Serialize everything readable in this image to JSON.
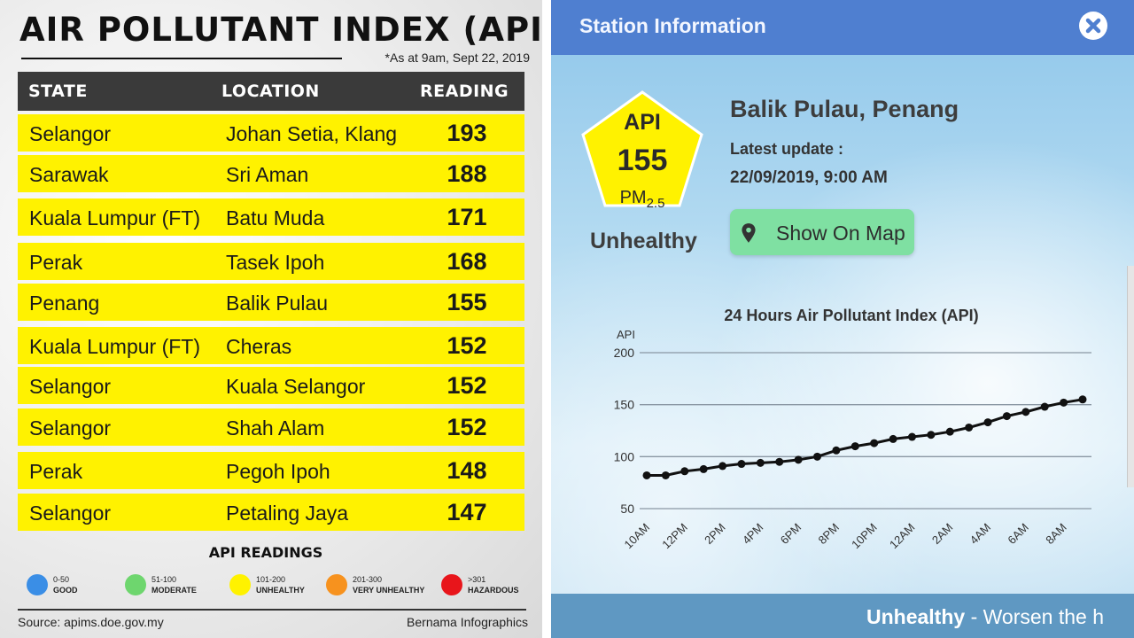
{
  "infographic": {
    "title": "AIR POLLUTANT INDEX (API)",
    "date_note": "*As at 9am, Sept 22, 2019",
    "table": {
      "headers": {
        "state": "STATE",
        "location": "LOCATION",
        "reading": "READING"
      },
      "rows": [
        {
          "state": "Selangor",
          "location": "Johan Setia, Klang",
          "reading": "193"
        },
        {
          "state": "Sarawak",
          "location": "Sri Aman",
          "reading": "188"
        },
        {
          "state": "Kuala Lumpur (FT)",
          "location": "Batu Muda",
          "reading": "171"
        },
        {
          "state": "Perak",
          "location": "Tasek Ipoh",
          "reading": "168"
        },
        {
          "state": "Penang",
          "location": "Balik Pulau",
          "reading": "155"
        },
        {
          "state": "Kuala Lumpur (FT)",
          "location": "Cheras",
          "reading": "152"
        },
        {
          "state": "Selangor",
          "location": "Kuala Selangor",
          "reading": "152"
        },
        {
          "state": "Selangor",
          "location": "Shah Alam",
          "reading": "152"
        },
        {
          "state": "Perak",
          "location": "Pegoh Ipoh",
          "reading": "148"
        },
        {
          "state": "Selangor",
          "location": "Petaling Jaya",
          "reading": "147"
        }
      ]
    },
    "legend": {
      "title": "API READINGS",
      "items": [
        {
          "range": "0-50",
          "label": "GOOD",
          "color": "#3a8ee6"
        },
        {
          "range": "51-100",
          "label": "MODERATE",
          "color": "#6ed66e"
        },
        {
          "range": "101-200",
          "label": "UNHEALTHY",
          "color": "#fff200"
        },
        {
          "range": "201-300",
          "label": "VERY UNHEALTHY",
          "color": "#f7921e"
        },
        {
          "range": ">301",
          "label": "HAZARDOUS",
          "color": "#e8151b"
        }
      ]
    },
    "footer": {
      "source": "Source: apims.doe.gov.my",
      "credit": "Bernama Infographics"
    }
  },
  "app": {
    "header_title": "Station Information",
    "close_icon": "close-icon",
    "badge": {
      "label": "API",
      "value": "155",
      "pollutant": "PM",
      "pollutant_sub": "2.5",
      "color": "#fff200"
    },
    "air_status": "Unhealthy",
    "station": {
      "name": "Balik Pulau, Penang",
      "update_label": "Latest update :",
      "update_time": "22/09/2019, 9:00 AM"
    },
    "map_button": {
      "label": "Show On Map",
      "icon": "map-pin-icon",
      "color": "#7fe0a2"
    },
    "bottom_bar": {
      "status": "Unhealthy",
      "description": " - Worsen the h"
    }
  },
  "chart_data": {
    "type": "line",
    "title": "24 Hours Air Pollutant Index (API)",
    "ylabel": "API",
    "xlabel": "",
    "ylim": [
      50,
      200
    ],
    "yticks": [
      50,
      100,
      150,
      200
    ],
    "grid": true,
    "x_tick_labels": [
      "10AM",
      "12PM",
      "2PM",
      "4PM",
      "6PM",
      "8PM",
      "10PM",
      "12AM",
      "2AM",
      "4AM",
      "6AM",
      "8AM"
    ],
    "x": [
      "10AM",
      "11AM",
      "12PM",
      "1PM",
      "2PM",
      "3PM",
      "4PM",
      "5PM",
      "6PM",
      "7PM",
      "8PM",
      "9PM",
      "10PM",
      "11PM",
      "12AM",
      "1AM",
      "2AM",
      "3AM",
      "4AM",
      "5AM",
      "6AM",
      "7AM",
      "8AM",
      "9AM"
    ],
    "values": [
      82,
      82,
      86,
      88,
      91,
      93,
      94,
      95,
      97,
      100,
      106,
      110,
      113,
      117,
      119,
      121,
      124,
      128,
      133,
      139,
      143,
      148,
      152,
      155
    ],
    "line_color": "#111111"
  }
}
